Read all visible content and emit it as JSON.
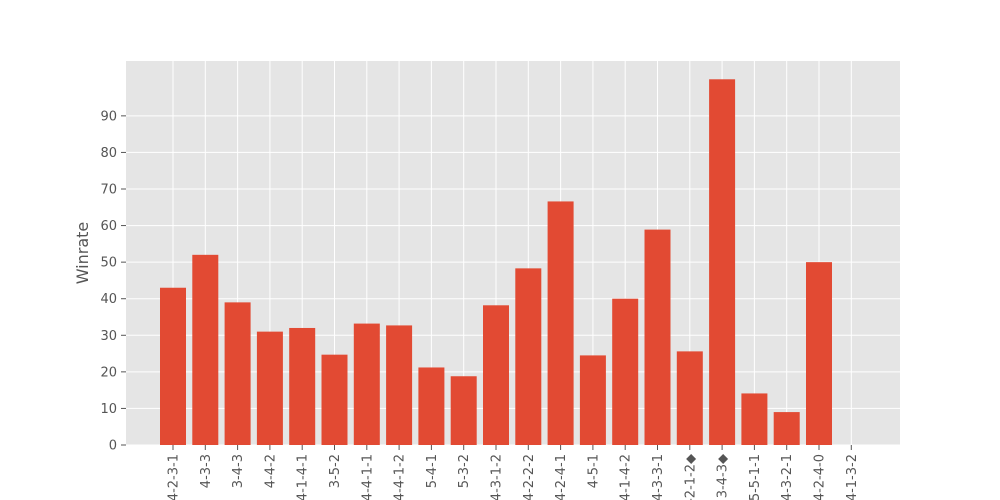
{
  "chart_data": {
    "type": "bar",
    "title": "",
    "xlabel": "",
    "ylabel": "Winrate",
    "categories": [
      "4-2-3-1",
      "4-3-3",
      "3-4-3",
      "4-4-2",
      "4-1-4-1",
      "3-5-2",
      "4-4-1-1",
      "4-4-1-2",
      "5-4-1",
      "5-3-2",
      "4-3-1-2",
      "4-2-2-2",
      "4-2-4-1",
      "4-5-1",
      "4-1-4-2",
      "4-3-3-1",
      "4-2-1-2◆",
      "3-4-3◆",
      "5-5-1-1",
      "4-3-2-1",
      "4-2-4-0",
      "4-1-3-2"
    ],
    "values": [
      43,
      52,
      39,
      31,
      32,
      24.7,
      33.2,
      32.7,
      21.2,
      18.8,
      38.2,
      48.3,
      66.6,
      24.5,
      40,
      58.9,
      25.6,
      100,
      14.1,
      9,
      50,
      0
    ],
    "ylim": [
      0,
      105
    ],
    "yticks": [
      0,
      10,
      20,
      30,
      40,
      50,
      60,
      70,
      80,
      90
    ],
    "grid": true,
    "colors": {
      "bar": "#e24a33",
      "plot_bg": "#e5e5e5",
      "grid": "#ffffff",
      "text": "#555555"
    }
  }
}
